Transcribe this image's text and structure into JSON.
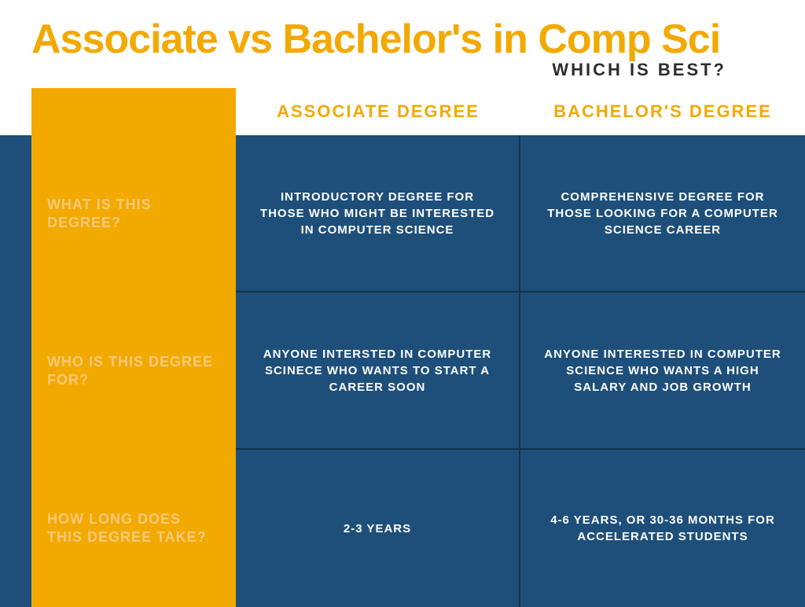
{
  "colors": {
    "orange": "#f2a900",
    "blue": "#1e4f7a",
    "dark": "#2d2d2d",
    "white": "#ffffff",
    "labelText": "#f7c979",
    "border": "#14324a"
  },
  "header": {
    "title": "Associate vs Bachelor's in Comp Sci",
    "subtitle": "WHICH IS BEST?"
  },
  "columns": {
    "col1": "ASSOCIATE DEGREE",
    "col2": "BACHELOR'S DEGREE"
  },
  "rows": [
    {
      "label": "WHAT IS THIS DEGREE?",
      "c1": "INTRODUCTORY DEGREE FOR THOSE WHO MIGHT BE INTERESTED IN COMPUTER SCIENCE",
      "c2": "COMPREHENSIVE DEGREE FOR THOSE LOOKING FOR A COMPUTER SCIENCE CAREER"
    },
    {
      "label": "WHO IS THIS DEGREE FOR?",
      "c1": "ANYONE INTERSTED IN COMPUTER SCINECE WHO WANTS TO START A CAREER SOON",
      "c2": "ANYONE INTERESTED IN COMPUTER SCIENCE WHO WANTS A HIGH SALARY AND JOB GROWTH"
    },
    {
      "label": "HOW LONG DOES THIS DEGREE TAKE?",
      "c1": "2-3 YEARS",
      "c2": "4-6 YEARS, OR 30-36 MONTHS FOR ACCELERATED STUDENTS"
    }
  ]
}
